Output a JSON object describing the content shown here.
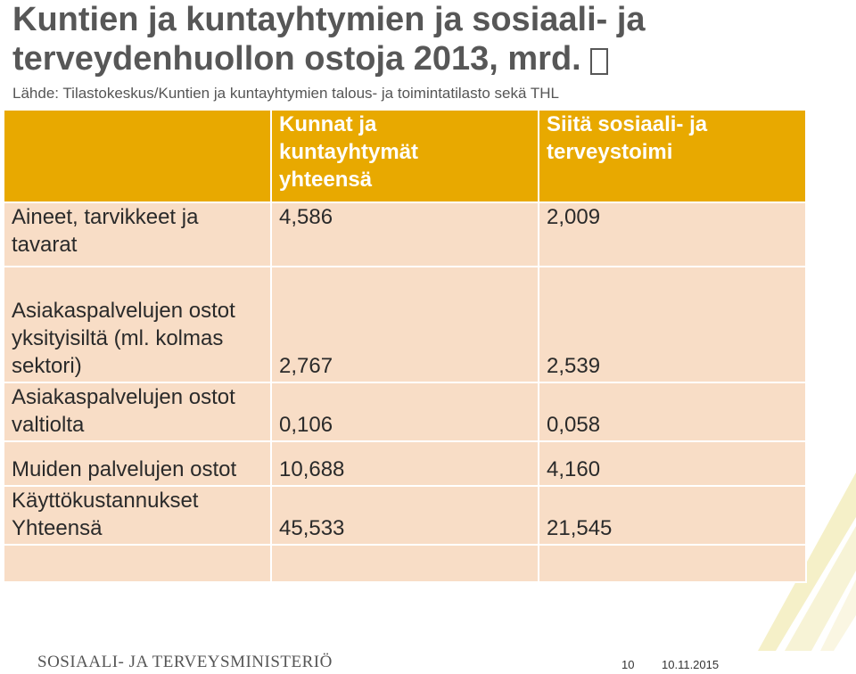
{
  "slide": {
    "title_line1": "Kuntien ja kuntayhtymien ja sosiaali- ja",
    "title_line2": "terveydenhuollon ostoja 2013, mrd.",
    "source": "Lähde: Tilastokeskus/Kuntien ja kuntayhtymien talous- ja toimintatilasto sekä THL"
  },
  "table": {
    "headers": {
      "col1": "",
      "col2_line1": "Kunnat ja",
      "col2_line2": "kuntayhtymät",
      "col2_line3": "yhteensä",
      "col3_line1": "Siitä sosiaali- ja",
      "col3_line2": "terveystoimi"
    },
    "rows": [
      {
        "label_line1": "Aineet, tarvikkeet ja",
        "label_line2": "tavarat",
        "total": "4,586",
        "social_health": "2,009"
      },
      {
        "label_line1": "Asiakaspalvelujen ostot",
        "label_line2": "yksityisiltä (ml. kolmas",
        "label_line3": "sektori)",
        "total": "2,767",
        "social_health": "2,539"
      },
      {
        "label_line1": "Asiakaspalvelujen ostot",
        "label_line2": "valtiolta",
        "total": "0,106",
        "social_health": "0,058"
      },
      {
        "label_line1": "Muiden palvelujen ostot",
        "total": "10,688",
        "social_health": "4,160"
      },
      {
        "label_line1": "Käyttökustannukset",
        "label_line2": "Yhteensä",
        "total": "45,533",
        "social_health": "21,545"
      }
    ]
  },
  "footer": {
    "ministry": "SOSIAALI- JA TERVEYSMINISTERIÖ",
    "page_number": "10",
    "date": "10.11.2015"
  },
  "colors": {
    "header_bg": "#e8a900",
    "cell_bg": "#f8ddc6",
    "title": "#575757"
  },
  "icons": {
    "currency_symbol": "euro-sign-icon"
  }
}
